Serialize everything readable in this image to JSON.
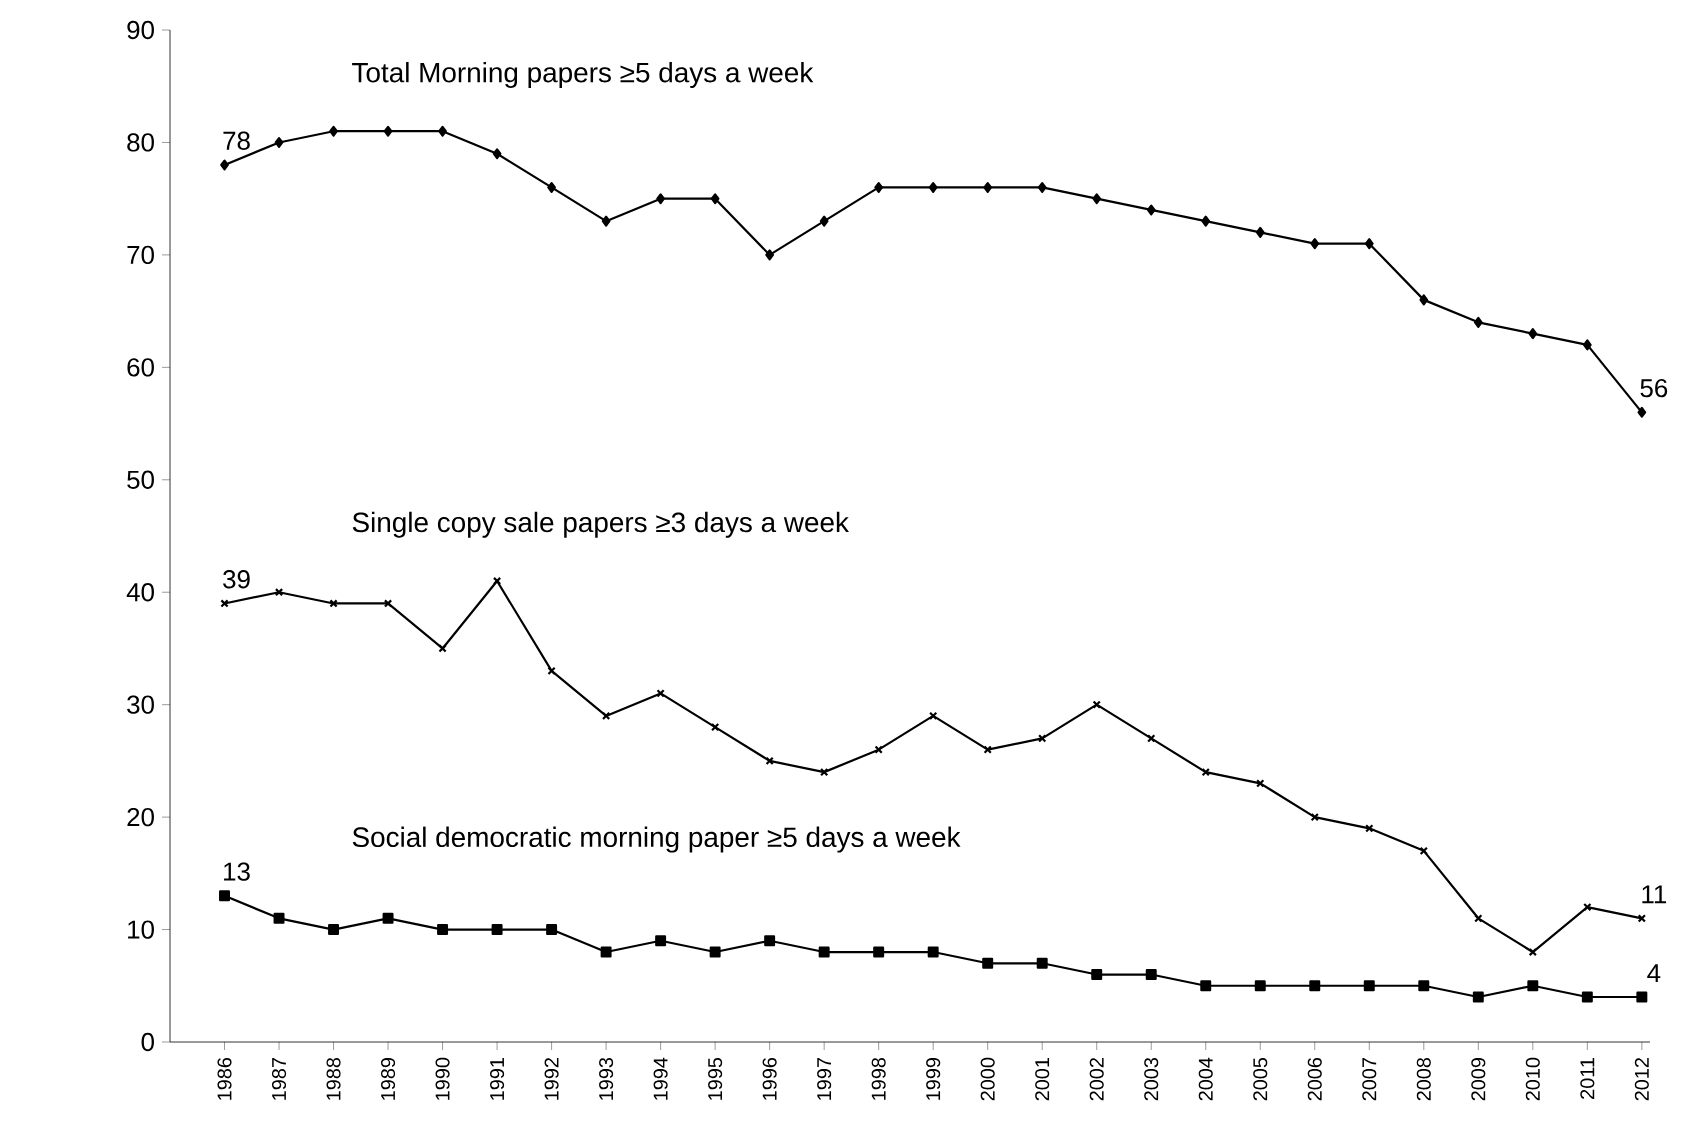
{
  "chart_data": {
    "type": "line",
    "categories": [
      "1986",
      "1987",
      "1988",
      "1989",
      "1990",
      "1991",
      "1992",
      "1993",
      "1994",
      "1995",
      "1996",
      "1997",
      "1998",
      "1999",
      "2000",
      "2001",
      "2002",
      "2003",
      "2004",
      "2005",
      "2006",
      "2007",
      "2008",
      "2009",
      "2010",
      "2011",
      "2012"
    ],
    "series": [
      {
        "name": "Total Morning papers ≥5 days a week",
        "color": "#000000",
        "marker": "diamond",
        "values": [
          78,
          80,
          81,
          81,
          81,
          79,
          76,
          73,
          75,
          75,
          70,
          73,
          76,
          76,
          76,
          76,
          75,
          74,
          73,
          72,
          71,
          71,
          66,
          64,
          63,
          62,
          56
        ],
        "value_labels": [
          "78",
          null,
          null,
          null,
          null,
          null,
          null,
          null,
          null,
          null,
          null,
          null,
          null,
          null,
          null,
          null,
          null,
          null,
          null,
          null,
          null,
          null,
          null,
          null,
          null,
          null,
          "56"
        ]
      },
      {
        "name": "Single copy sale papers ≥3 days a week",
        "color": "#000000",
        "marker": "cross",
        "values": [
          39,
          40,
          39,
          39,
          35,
          41,
          33,
          29,
          31,
          28,
          25,
          24,
          26,
          29,
          26,
          27,
          30,
          27,
          24,
          23,
          20,
          19,
          17,
          11,
          8,
          12,
          11
        ],
        "value_labels": [
          "39",
          null,
          null,
          null,
          null,
          null,
          null,
          null,
          null,
          null,
          null,
          null,
          null,
          null,
          null,
          null,
          null,
          null,
          null,
          null,
          null,
          null,
          null,
          null,
          null,
          null,
          "11"
        ]
      },
      {
        "name": "Social democratic morning paper ≥5 days a week",
        "color": "#000000",
        "marker": "square",
        "values": [
          13,
          11,
          10,
          11,
          10,
          10,
          10,
          8,
          9,
          8,
          9,
          8,
          8,
          8,
          7,
          7,
          6,
          6,
          5,
          5,
          5,
          5,
          5,
          4,
          5,
          4,
          4
        ],
        "value_labels": [
          "13",
          null,
          null,
          null,
          null,
          null,
          null,
          null,
          null,
          null,
          null,
          null,
          null,
          null,
          null,
          null,
          null,
          null,
          null,
          null,
          null,
          null,
          null,
          null,
          null,
          null,
          "4"
        ]
      }
    ],
    "ylim": [
      0,
      90
    ],
    "yticks": [
      0,
      10,
      20,
      30,
      40,
      50,
      60,
      70,
      80,
      90
    ],
    "grid": false,
    "line_style": "solid"
  }
}
